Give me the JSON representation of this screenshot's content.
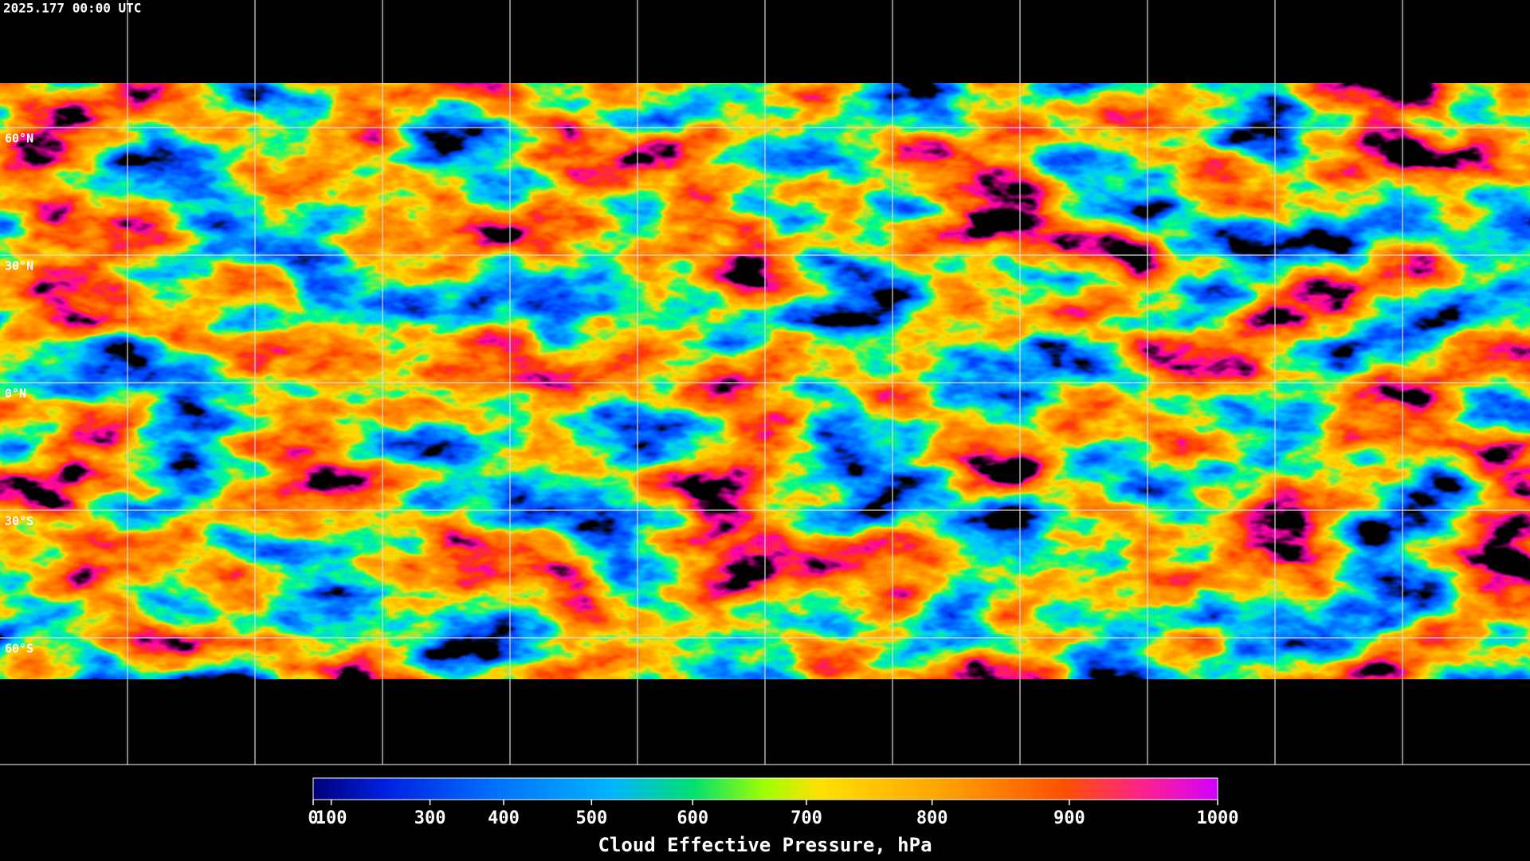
{
  "header": {
    "timestamp": "2025.177 00:00 UTC"
  },
  "map": {
    "latitude_labels": [
      "60°N",
      "30°N",
      "0°N",
      "30°S",
      "60°S"
    ]
  },
  "colorbar": {
    "title": "Cloud Effective Pressure, hPa",
    "range": [
      0,
      1000
    ],
    "ticks": [
      0,
      100,
      300,
      400,
      500,
      600,
      700,
      800,
      900,
      1000
    ]
  }
}
